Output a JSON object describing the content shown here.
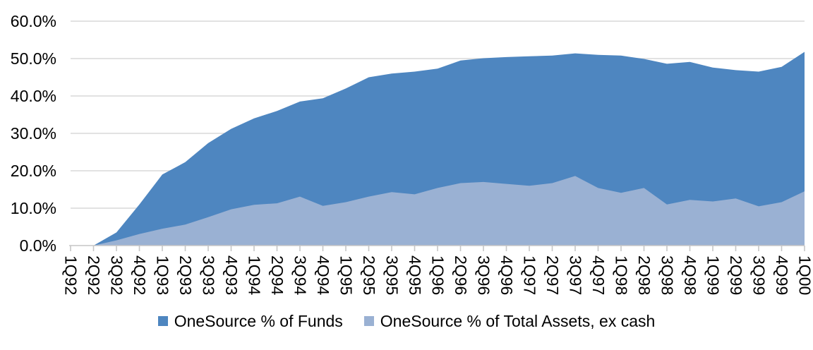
{
  "chart_data": {
    "type": "area",
    "title": "",
    "xlabel": "",
    "ylabel": "",
    "categories": [
      "1Q92",
      "2Q92",
      "3Q92",
      "4Q92",
      "1Q93",
      "2Q93",
      "3Q93",
      "4Q93",
      "1Q94",
      "2Q94",
      "3Q94",
      "4Q94",
      "1Q95",
      "2Q95",
      "3Q95",
      "4Q95",
      "1Q96",
      "2Q96",
      "3Q96",
      "4Q96",
      "1Q97",
      "2Q97",
      "3Q97",
      "4Q97",
      "1Q98",
      "2Q98",
      "3Q98",
      "4Q98",
      "1Q99",
      "2Q99",
      "3Q99",
      "4Q99",
      "1Q00"
    ],
    "series": [
      {
        "name": "OneSource % of Funds",
        "color": "#4E86C0",
        "values": [
          0,
          0,
          3.5,
          11,
          19,
          22.3,
          27.4,
          31.2,
          34,
          36,
          38.5,
          39.4,
          42,
          45,
          46,
          46.5,
          47.3,
          49.5,
          50.1,
          50.4,
          50.6,
          50.8,
          51.4,
          51,
          50.8,
          49.9,
          48.6,
          49.1,
          47.6,
          46.9,
          46.5,
          47.8,
          51.8
        ]
      },
      {
        "name": "OneSource % of Total Assets, ex cash",
        "color": "#9AB1D3",
        "values": [
          0,
          0,
          1.4,
          3.1,
          4.5,
          5.6,
          7.6,
          9.7,
          10.9,
          11.3,
          13.1,
          10.6,
          11.6,
          13.1,
          14.3,
          13.7,
          15.4,
          16.7,
          17.0,
          16.5,
          16.0,
          16.7,
          18.6,
          15.4,
          14.1,
          15.4,
          11.0,
          12.2,
          11.8,
          12.6,
          10.5,
          11.6,
          14.5
        ]
      }
    ],
    "ylim": [
      0,
      60
    ],
    "ytick_step": 10,
    "ytick_labels": [
      "0.0%",
      "10.0%",
      "20.0%",
      "30.0%",
      "40.0%",
      "50.0%",
      "60.0%"
    ],
    "grid": true,
    "gridline_color": "#D9D9D9",
    "axis_line_color": "#C6C6C6",
    "legend_position": "bottom",
    "x_label_rotation_deg": 90
  }
}
